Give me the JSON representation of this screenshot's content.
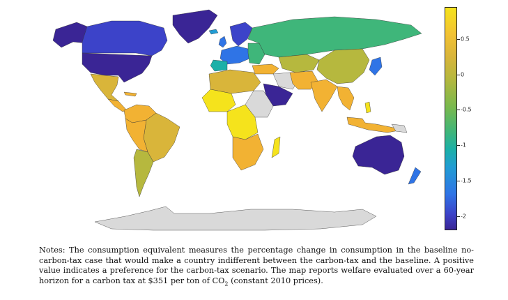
{
  "colorbar": {
    "ticks": [
      {
        "label": "0.5",
        "value": 0.5
      },
      {
        "label": "0",
        "value": 0
      },
      {
        "label": "-0.5",
        "value": -0.5
      },
      {
        "label": "-1",
        "value": -1
      },
      {
        "label": "-1.5",
        "value": -1.5
      },
      {
        "label": "-2",
        "value": -2
      }
    ],
    "min": -2.2,
    "max": 0.95
  },
  "colors": {
    "deep_blue": "#3a2595",
    "blue": "#3c43c9",
    "mid_blue": "#2f74e6",
    "teal": "#1bb0a8",
    "green": "#3fb67a",
    "olive": "#b6b83e",
    "gold": "#d9b53a",
    "orange": "#f2b233",
    "yellow": "#f5e31c",
    "no_data": "#d9d9d9"
  },
  "notes": {
    "part1": "Notes: The consumption equivalent measures the percentage change in consumption in the baseline no-carbon-tax case that would make a country indifferent between the carbon-tax and the baseline. A positive value indicates a preference for the carbon-tax scenario. The map reports welfare evaluated over a 60-year horizon for a carbon tax at $351 per ton of CO",
    "sub": "2",
    "part2": " (constant 2010 prices)."
  }
}
